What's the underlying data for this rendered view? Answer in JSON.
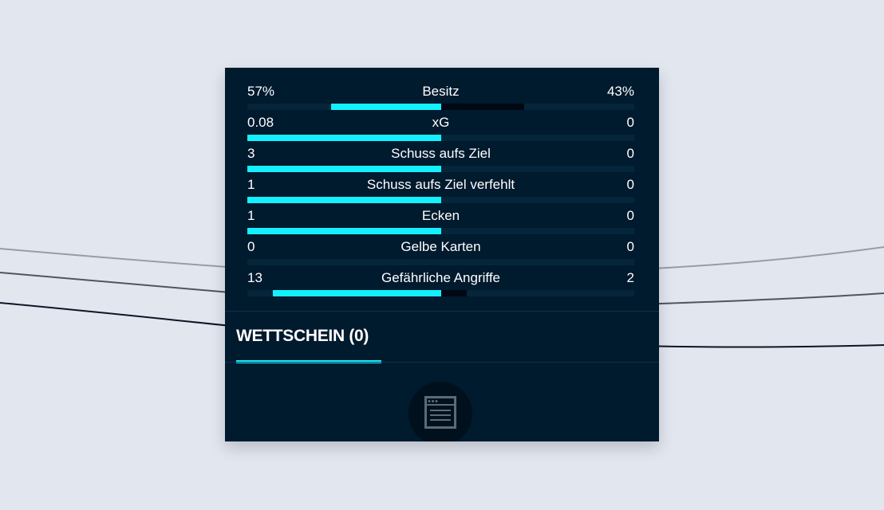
{
  "colors": {
    "page_background": "#e2e6ef",
    "panel_background": "#001a2e",
    "accent_cyan": "#13f1ff",
    "away_bar": "#000814",
    "text": "#ffffff"
  },
  "stats": [
    {
      "label": "Besitz",
      "home": "57%",
      "away": "43%",
      "home_fraction": 0.57,
      "away_fraction": 0.43
    },
    {
      "label": "xG",
      "home": "0.08",
      "away": "0",
      "home_fraction": 1.0,
      "away_fraction": 0.0
    },
    {
      "label": "Schuss aufs Ziel",
      "home": "3",
      "away": "0",
      "home_fraction": 1.0,
      "away_fraction": 0.0
    },
    {
      "label": "Schuss aufs Ziel verfehlt",
      "home": "1",
      "away": "0",
      "home_fraction": 1.0,
      "away_fraction": 0.0
    },
    {
      "label": "Ecken",
      "home": "1",
      "away": "0",
      "home_fraction": 1.0,
      "away_fraction": 0.0
    },
    {
      "label": "Gelbe Karten",
      "home": "0",
      "away": "0",
      "home_fraction": 0.0,
      "away_fraction": 0.0
    },
    {
      "label": "Gefährliche Angriffe",
      "home": "13",
      "away": "2",
      "home_fraction": 0.87,
      "away_fraction": 0.13
    }
  ],
  "betslip": {
    "tab_label": "WETTSCHEIN (0)",
    "empty_icon": "betslip-document-icon"
  }
}
